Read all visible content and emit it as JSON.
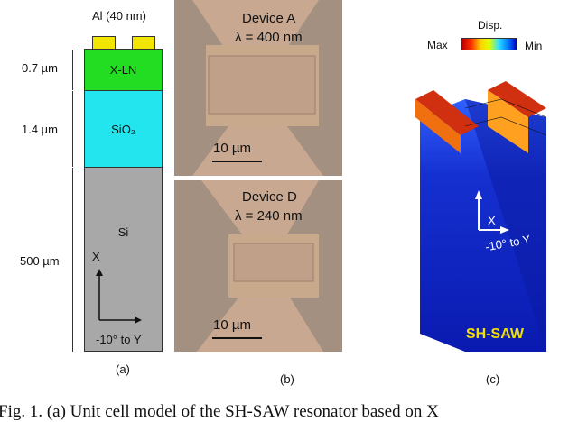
{
  "panel_a": {
    "al_label": "Al (40 nm)",
    "layers": [
      {
        "name": "X-LN",
        "thickness": "0.7 µm",
        "color": "#22dd22"
      },
      {
        "name": "SiO₂",
        "thickness": "1.4 µm",
        "color": "#22e5ee"
      },
      {
        "name": "Si",
        "thickness": "500 µm",
        "color": "#a8a8a8"
      }
    ],
    "axis_x": "X",
    "axis_y": "-10° to Y",
    "label": "(a)"
  },
  "panel_b": {
    "device_a": {
      "name": "Device A",
      "wavelength": "λ = 400 nm",
      "scale": "10 µm"
    },
    "device_d": {
      "name": "Device D",
      "wavelength": "λ = 240 nm",
      "scale": "10 µm"
    },
    "label": "(b)"
  },
  "panel_c": {
    "legend_title": "Disp.",
    "legend_max": "Max",
    "legend_min": "Min",
    "axis_x": "X",
    "axis_y": "-10° to Y",
    "mode": "SH-SAW",
    "label": "(c)"
  },
  "caption": "Fig. 1.  (a) Unit cell model of the SH-SAW resonator based on X"
}
